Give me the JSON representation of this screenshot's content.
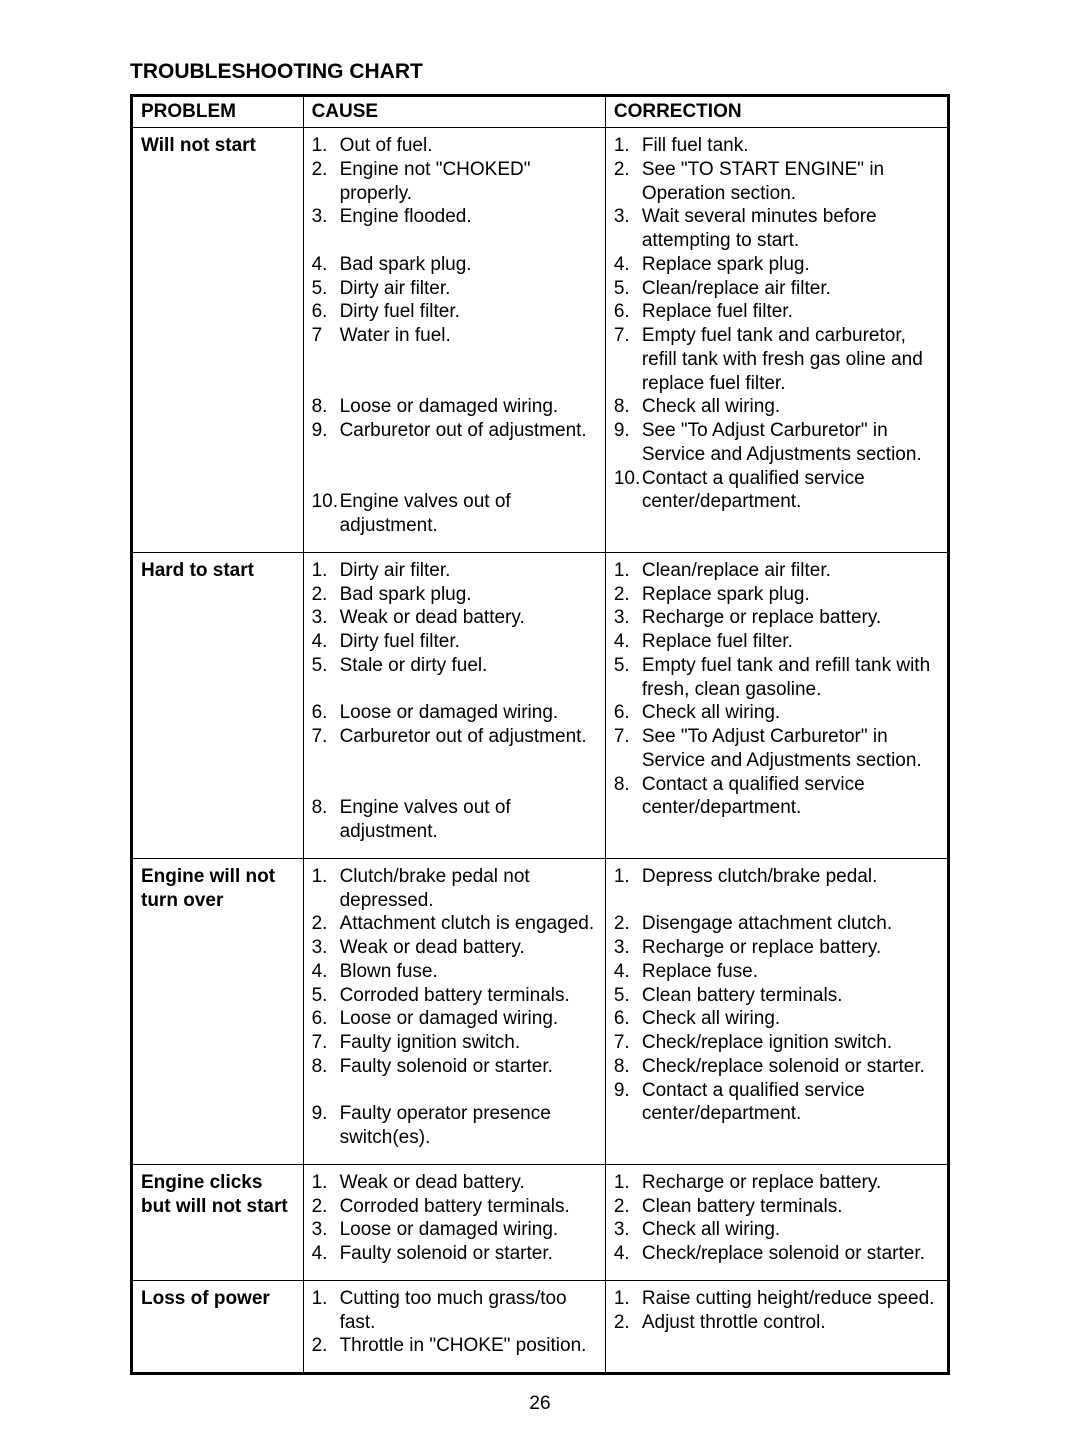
{
  "title": "TROUBLESHOOTING CHART",
  "headers": {
    "problem": "PROBLEM",
    "cause": "CAUSE",
    "correction": "CORRECTION"
  },
  "rows": [
    {
      "problem": "Will not start",
      "causes": [
        {
          "n": "1.",
          "t": "Out of fuel."
        },
        {
          "n": "2.",
          "t": "Engine not \"CHOKED\" properly."
        },
        {
          "n": "3.",
          "t": "Engine flooded."
        },
        {
          "n": "",
          "t": ""
        },
        {
          "n": "4.",
          "t": "Bad spark plug."
        },
        {
          "n": "5.",
          "t": "Dirty air filter."
        },
        {
          "n": "6.",
          "t": "Dirty fuel filter."
        },
        {
          "n": "7",
          "t": "Water in fuel."
        },
        {
          "n": "",
          "t": ""
        },
        {
          "n": "",
          "t": ""
        },
        {
          "n": "8.",
          "t": "Loose or damaged wiring."
        },
        {
          "n": "9.",
          "t": "Carburetor out of adjustment."
        },
        {
          "n": "",
          "t": ""
        },
        {
          "n": "",
          "t": ""
        },
        {
          "n": "10.",
          "t": "Engine valves out of adjustment."
        }
      ],
      "corrections": [
        {
          "n": "1.",
          "t": "Fill fuel tank."
        },
        {
          "n": "2.",
          "t": "See \"TO START ENGINE\" in Operation section."
        },
        {
          "n": "3.",
          "t": "Wait several minutes before attempting to start."
        },
        {
          "n": "4.",
          "t": "Replace spark plug."
        },
        {
          "n": "5.",
          "t": "Clean/replace air filter."
        },
        {
          "n": "6.",
          "t": "Replace fuel filter."
        },
        {
          "n": "7.",
          "t": "Empty fuel tank and carburetor, refill tank with fresh gas oline and replace fuel filter."
        },
        {
          "n": "8.",
          "t": "Check all wiring."
        },
        {
          "n": "9.",
          "t": "See \"To Adjust Carburetor\" in Service and Adjustments section."
        },
        {
          "n": "10.",
          "t": "Contact a qualified service center/department."
        }
      ]
    },
    {
      "problem": "Hard to start",
      "causes": [
        {
          "n": "1.",
          "t": "Dirty air filter."
        },
        {
          "n": "2.",
          "t": "Bad spark plug."
        },
        {
          "n": "3.",
          "t": "Weak or dead battery."
        },
        {
          "n": "4.",
          "t": "Dirty fuel filter."
        },
        {
          "n": "5.",
          "t": "Stale or dirty fuel."
        },
        {
          "n": "",
          "t": ""
        },
        {
          "n": "6.",
          "t": "Loose or damaged wiring."
        },
        {
          "n": "7.",
          "t": "Carburetor out of adjustment."
        },
        {
          "n": "",
          "t": ""
        },
        {
          "n": "",
          "t": ""
        },
        {
          "n": "8.",
          "t": "Engine valves out of adjustment."
        }
      ],
      "corrections": [
        {
          "n": "1.",
          "t": "Clean/replace air filter."
        },
        {
          "n": "2.",
          "t": "Replace spark plug."
        },
        {
          "n": "3.",
          "t": "Recharge or replace battery."
        },
        {
          "n": "4.",
          "t": "Replace fuel filter."
        },
        {
          "n": "5.",
          "t": "Empty fuel tank and refill tank with fresh, clean gasoline."
        },
        {
          "n": "6.",
          "t": "Check all wiring."
        },
        {
          "n": "7.",
          "t": "See \"To Adjust Carburetor\" in Service and Adjustments section."
        },
        {
          "n": "8.",
          "t": "Contact a qualified service center/department."
        }
      ]
    },
    {
      "problem": "Engine will not turn over",
      "causes": [
        {
          "n": "1.",
          "t": "Clutch/brake pedal not depressed."
        },
        {
          "n": "2.",
          "t": "Attachment clutch is engaged."
        },
        {
          "n": "3.",
          "t": "Weak or dead battery."
        },
        {
          "n": "4.",
          "t": "Blown fuse."
        },
        {
          "n": "5.",
          "t": "Corroded battery terminals."
        },
        {
          "n": "6.",
          "t": "Loose or damaged wiring."
        },
        {
          "n": "7.",
          "t": "Faulty ignition switch."
        },
        {
          "n": "8.",
          "t": "Faulty solenoid or starter."
        },
        {
          "n": "",
          "t": ""
        },
        {
          "n": "9.",
          "t": "Faulty operator presence switch(es)."
        }
      ],
      "corrections": [
        {
          "n": "1.",
          "t": "Depress clutch/brake pedal."
        },
        {
          "n": "",
          "t": ""
        },
        {
          "n": "2.",
          "t": "Disengage attachment clutch."
        },
        {
          "n": "3.",
          "t": "Recharge or replace battery."
        },
        {
          "n": "4.",
          "t": "Replace fuse."
        },
        {
          "n": "5.",
          "t": "Clean battery terminals."
        },
        {
          "n": "6.",
          "t": "Check all wiring."
        },
        {
          "n": "7.",
          "t": "Check/replace ignition switch."
        },
        {
          "n": "8.",
          "t": "Check/replace solenoid or starter."
        },
        {
          "n": "9.",
          "t": "Contact a qualified service center/department."
        }
      ]
    },
    {
      "problem": "Engine clicks but will not start",
      "causes": [
        {
          "n": "1.",
          "t": "Weak or dead battery."
        },
        {
          "n": "2.",
          "t": "Corroded battery terminals."
        },
        {
          "n": "3.",
          "t": "Loose or damaged wiring."
        },
        {
          "n": "4.",
          "t": "Faulty solenoid or starter."
        }
      ],
      "corrections": [
        {
          "n": "1.",
          "t": "Recharge or replace battery."
        },
        {
          "n": "2.",
          "t": "Clean battery terminals."
        },
        {
          "n": "3.",
          "t": "Check all wiring."
        },
        {
          "n": "4.",
          "t": "Check/replace solenoid or starter."
        }
      ]
    },
    {
      "problem": "Loss of power",
      "causes": [
        {
          "n": "1.",
          "t": "Cutting too much grass/too fast."
        },
        {
          "n": "2.",
          "t": "Throttle in \"CHOKE\" position."
        }
      ],
      "corrections": [
        {
          "n": "1.",
          "t": "Raise cutting height/reduce speed."
        },
        {
          "n": "2.",
          "t": "Adjust throttle control."
        }
      ]
    }
  ],
  "pageNumber": "26"
}
